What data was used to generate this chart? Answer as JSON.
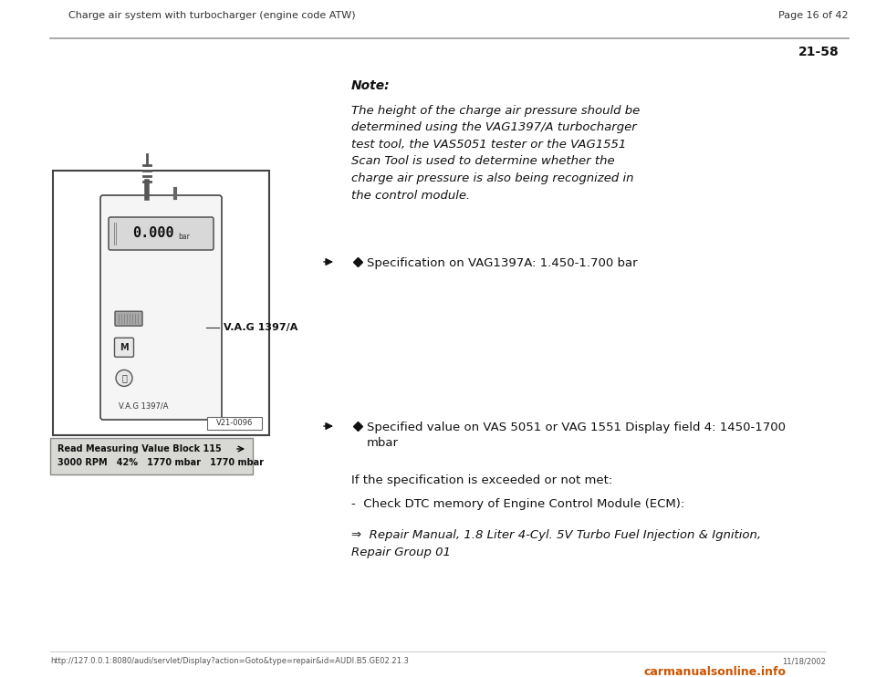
{
  "bg_color": "#ffffff",
  "page_bg": "#f0f0eb",
  "header_left": "Charge air system with turbocharger (engine code ATW)",
  "header_right": "Page 16 of 42",
  "page_number": "21-58",
  "note_title": "Note:",
  "note_body": "The height of the charge air pressure should be\ndetermined using the VAG1397/A turbocharger\ntest tool, the VAS5051 tester or the VAG1551\nScan Tool is used to determine whether the\ncharge air pressure is also being recognized in\nthe control module.",
  "bullet1": "Specification on VAG1397A: 1.450-1.700 bar",
  "bullet2_line1": "Specified value on VAS 5051 or VAG 1551 Display field 4: 1450-1700",
  "bullet2_line2": "mbar",
  "if_spec_text": "If the specification is exceeded or not met:",
  "check_text": "-  Check DTC memory of Engine Control Module (ECM):",
  "repair_text": "⇒  Repair Manual, 1.8 Liter 4-Cyl. 5V Turbo Fuel Injection & Ignition,\nRepair Group 01",
  "display_label1": "Read Measuring Value Block 115",
  "display_label2": "3000 RPM   42%   1770 mbar   1770 mbar",
  "footer_url": "http://127.0.0.1:8080/audi/servlet/Display?action=Goto&type=repair&id=AUDI.B5.GE02.21.3",
  "footer_right": "11/18/2002",
  "footer_logo": "carmanualsonline.info"
}
